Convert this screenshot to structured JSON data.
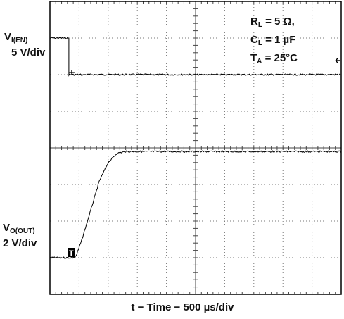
{
  "chart_data": {
    "type": "line",
    "title": "",
    "grid": true,
    "divisions": {
      "x": 10,
      "y": 8
    },
    "xlabel": "t − Time − 500 µs/div",
    "conditions": [
      {
        "sym": "R",
        "sub": "L",
        "rest": " = 5 Ω,"
      },
      {
        "sym": "C",
        "sub": "L",
        "rest": " = 1 µF"
      },
      {
        "sym": "T",
        "sub": "A",
        "rest": " = 25°C"
      }
    ],
    "channels": [
      {
        "label_main": "V",
        "label_sub": "I(EN)",
        "scale": "5 V/div",
        "unit": "div",
        "x": [
          0,
          0.65,
          0.65,
          10
        ],
        "y": [
          7.0,
          7.0,
          6.0,
          6.0
        ],
        "marker": "+"
      },
      {
        "label_main": "V",
        "label_sub": "O(OUT)",
        "scale": "2 V/div",
        "unit": "div",
        "x": [
          0,
          0.8,
          0.9,
          1.1,
          1.4,
          1.7,
          2.0,
          2.3,
          2.6,
          10
        ],
        "y": [
          1.0,
          1.0,
          1.05,
          1.5,
          2.3,
          3.1,
          3.6,
          3.85,
          3.9,
          3.9
        ],
        "marker": "T"
      }
    ]
  }
}
